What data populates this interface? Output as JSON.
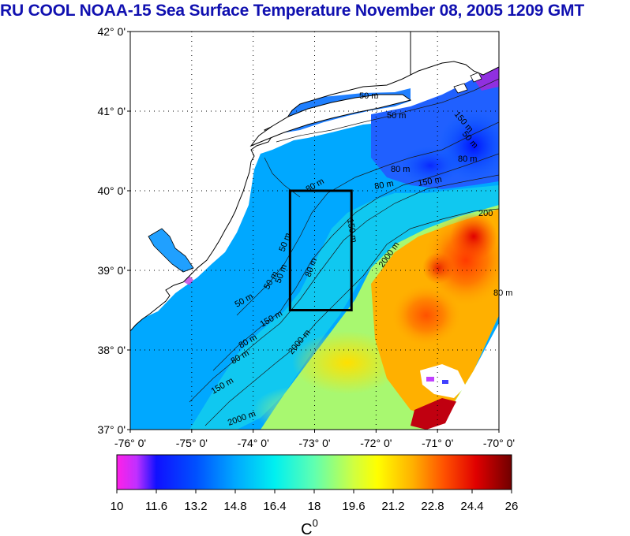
{
  "title": "RU COOL  NOAA-15 Sea Surface Temperature November 08, 2005 1209 GMT",
  "colors": {
    "title": "#1010b0",
    "land": "#ffffff",
    "frame": "#000000",
    "scale": [
      "#ff30e0",
      "#8040ff",
      "#0000ff",
      "#0070ff",
      "#00d8ff",
      "#40ffd8",
      "#a0ff80",
      "#ffff00",
      "#ffa000",
      "#ff4000",
      "#d00000",
      "#800000"
    ]
  },
  "map": {
    "lat_labels": [
      "42° 0'",
      "41° 0'",
      "40° 0'",
      "39° 0'",
      "38° 0'",
      "37° 0'"
    ],
    "lon_labels": [
      "-76° 0'",
      "-75° 0'",
      "-74° 0'",
      "-73° 0'",
      "-72° 0'",
      "-71° 0'",
      "-70° 0'"
    ],
    "lon_range": [
      -76,
      -70
    ],
    "lat_range": [
      37,
      42
    ],
    "study_box": {
      "lon": [
        -73.4,
        -72.4
      ],
      "lat": [
        38.5,
        40.0
      ]
    },
    "contour_labels": [
      "50 m",
      "50 m",
      "50 m",
      "50 m",
      "80 m",
      "80 m",
      "80 m",
      "80 m",
      "80 m",
      "80 m",
      "80 m",
      "150 m",
      "150 m",
      "150 m",
      "150 m",
      "150 m",
      "2000 m",
      "2000 m",
      "2000 m",
      "200",
      "50 m",
      "50 m",
      "50 m",
      "80 m"
    ]
  },
  "colorbar": {
    "ticks": [
      "10",
      "11.6",
      "13.2",
      "14.8",
      "16.4",
      "18",
      "19.6",
      "21.2",
      "22.8",
      "24.4",
      "26"
    ],
    "range": [
      10,
      26
    ],
    "unit": "C",
    "unit_superscript": "0"
  }
}
